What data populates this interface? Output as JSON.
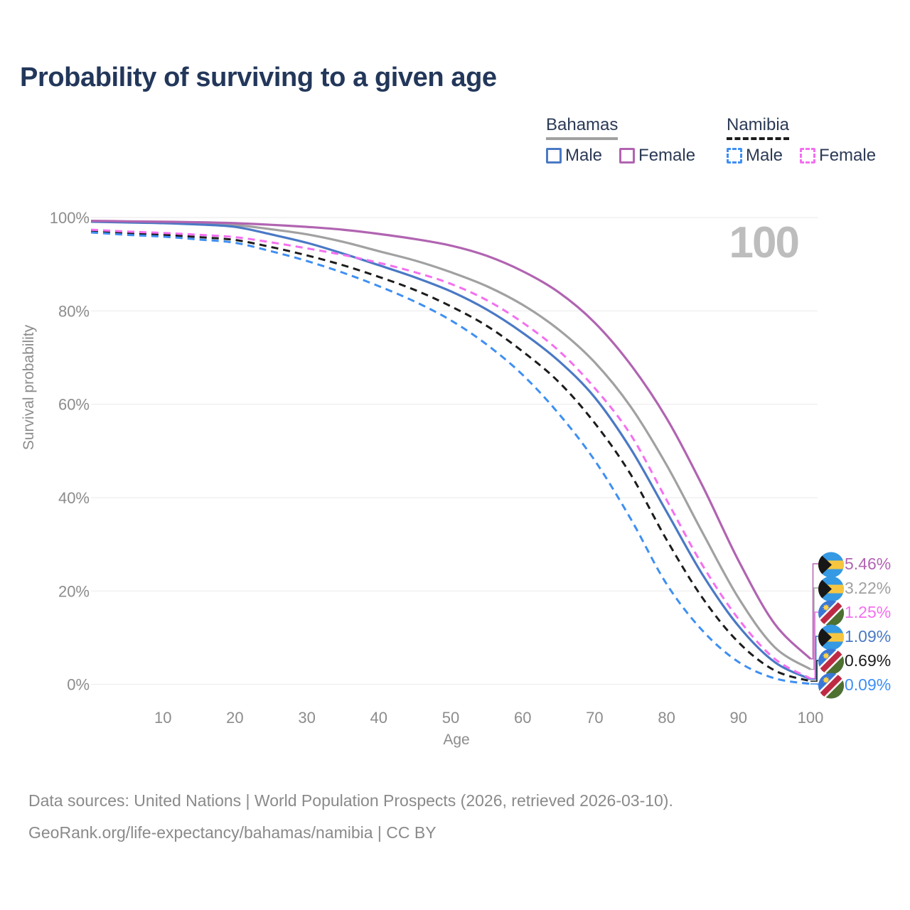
{
  "title": "Probability of surviving to a given age",
  "watermark_age_counter": "100",
  "colors": {
    "title_text": "#22375A",
    "axis_text": "#8C8C8C",
    "gridline": "#EAEAEA",
    "watermark": "#BDBDBD",
    "footer_text": "#8A8A8A",
    "legend_text": "#2B3A55"
  },
  "legend": {
    "groups": [
      {
        "country": "Bahamas",
        "line_style": "solid",
        "line_color": "#A1A1A1",
        "items": [
          {
            "label": "Male",
            "color": "#4A79C5"
          },
          {
            "label": "Female",
            "color": "#B164B1"
          }
        ]
      },
      {
        "country": "Namibia",
        "line_style": "dashed",
        "line_color": "#1C1C1C",
        "items": [
          {
            "label": "Male",
            "color": "#3E8FF3"
          },
          {
            "label": "Female",
            "color": "#F46FF0"
          }
        ]
      }
    ]
  },
  "chart_data": {
    "type": "line",
    "title": "Probability of surviving to a given age",
    "xlabel": "Age",
    "ylabel": "Survival probability",
    "xlim": [
      0,
      100
    ],
    "ylim": [
      0,
      100
    ],
    "x_ticks": [
      10,
      20,
      30,
      40,
      50,
      60,
      70,
      80,
      90,
      100
    ],
    "y_ticks": [
      0,
      20,
      40,
      60,
      80,
      100
    ],
    "y_tick_suffix": "%",
    "grid": "horizontal",
    "x": [
      0,
      5,
      10,
      15,
      20,
      25,
      30,
      35,
      40,
      45,
      50,
      55,
      60,
      65,
      70,
      75,
      80,
      85,
      90,
      95,
      100
    ],
    "series": [
      {
        "id": "bahamas-female",
        "name": "Bahamas Female",
        "country": "Bahamas",
        "color": "#B164B1",
        "dash": false,
        "flag": "bahamas",
        "end_label": "5.46%",
        "values": [
          99.3,
          99.2,
          99.1,
          99.0,
          98.8,
          98.45,
          98.0,
          97.4,
          96.5,
          95.4,
          94.0,
          91.8,
          88.5,
          84.0,
          77.5,
          68.5,
          57.0,
          42.5,
          26.5,
          13.0,
          5.46
        ]
      },
      {
        "id": "bahamas-total",
        "name": "Bahamas",
        "country": "Bahamas",
        "color": "#A1A1A1",
        "dash": false,
        "flag": "bahamas",
        "end_label": "3.22%",
        "values": [
          99.2,
          99.05,
          98.9,
          98.7,
          98.4,
          97.5,
          96.4,
          94.8,
          92.8,
          90.8,
          88.3,
          85.3,
          81.3,
          76.0,
          69.0,
          59.5,
          47.0,
          32.5,
          18.5,
          8.0,
          3.22
        ]
      },
      {
        "id": "namibia-female",
        "name": "Namibia Female",
        "country": "Namibia",
        "color": "#F46FF0",
        "dash": true,
        "flag": "namibia",
        "end_label": "1.25%",
        "values": [
          97.4,
          97.0,
          96.7,
          96.3,
          95.8,
          94.7,
          93.4,
          92.0,
          90.3,
          88.3,
          85.8,
          82.3,
          77.5,
          71.5,
          63.5,
          53.5,
          39.5,
          25.5,
          14.0,
          5.5,
          1.25
        ]
      },
      {
        "id": "bahamas-male",
        "name": "Bahamas Male",
        "country": "Bahamas",
        "color": "#4A79C5",
        "dash": false,
        "flag": "bahamas",
        "end_label": "1.09%",
        "values": [
          99.1,
          98.95,
          98.8,
          98.5,
          98.0,
          96.4,
          94.6,
          92.3,
          89.8,
          87.2,
          84.2,
          80.3,
          75.3,
          69.3,
          61.5,
          50.5,
          37.0,
          23.5,
          12.5,
          4.8,
          1.09
        ]
      },
      {
        "id": "namibia-total",
        "name": "Namibia",
        "country": "Namibia",
        "color": "#1C1C1C",
        "dash": true,
        "flag": "namibia",
        "end_label": "0.69%",
        "values": [
          97.1,
          96.7,
          96.3,
          95.8,
          95.2,
          93.7,
          91.9,
          89.8,
          87.3,
          84.5,
          81.0,
          76.8,
          71.3,
          64.8,
          56.0,
          45.0,
          31.0,
          18.5,
          9.0,
          3.0,
          0.69
        ]
      },
      {
        "id": "namibia-male",
        "name": "Namibia Male",
        "country": "Namibia",
        "color": "#3E8FF3",
        "dash": true,
        "flag": "namibia",
        "end_label": "0.09%",
        "values": [
          96.8,
          96.3,
          95.9,
          95.3,
          94.6,
          92.8,
          90.7,
          88.2,
          85.3,
          82.0,
          78.0,
          72.8,
          66.3,
          58.0,
          48.0,
          35.5,
          21.5,
          11.5,
          4.8,
          1.3,
          0.09
        ]
      }
    ]
  },
  "footer": {
    "line1": "Data sources: United Nations | World Population Prospects (2026, retrieved 2026-03-10).",
    "line2": "GeoRank.org/life-expectancy/bahamas/namibia | CC BY"
  }
}
